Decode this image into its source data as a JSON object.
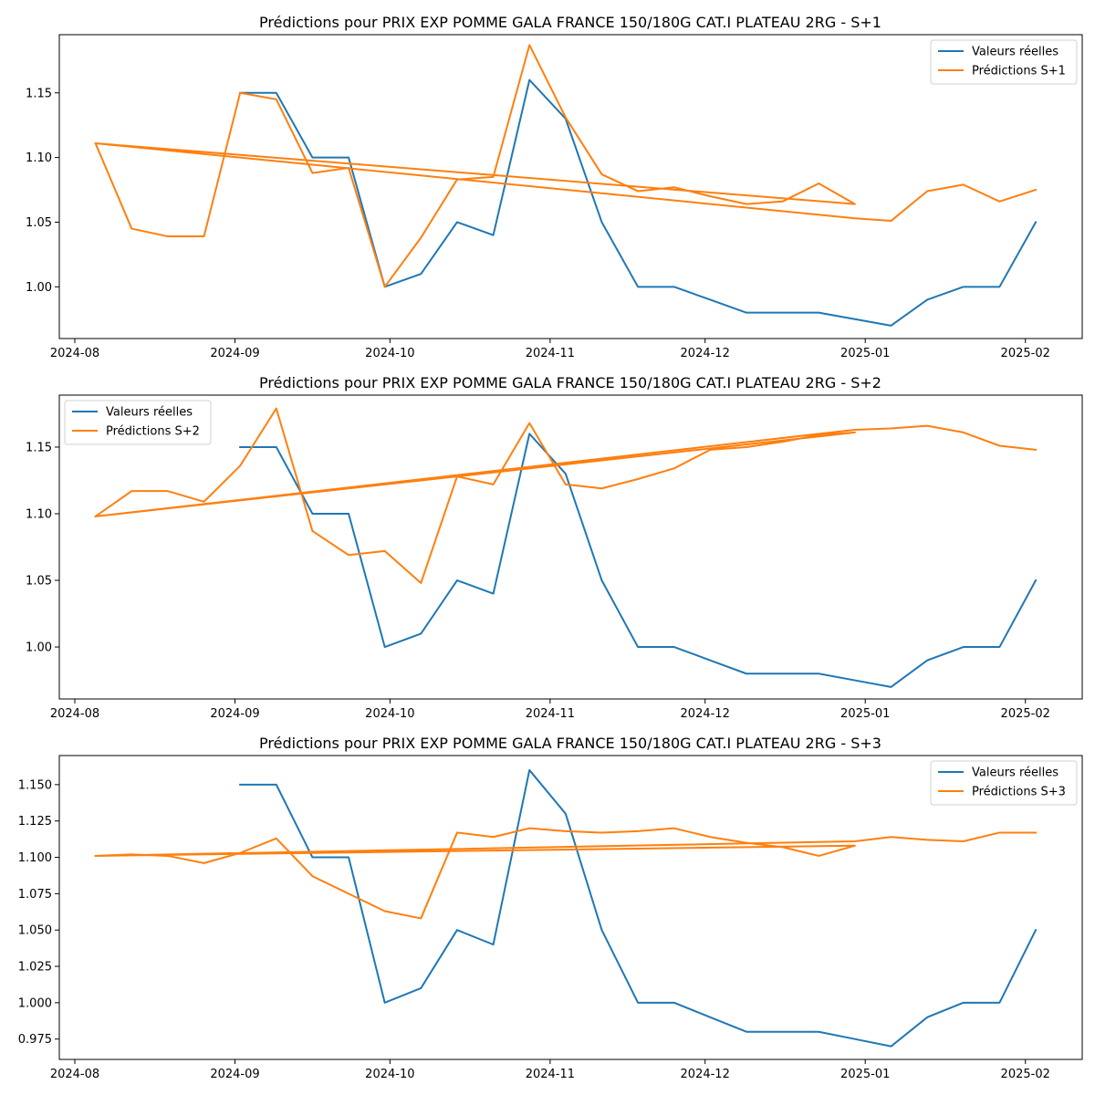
{
  "colors": {
    "actual": "#1f77b4",
    "prediction": "#ff7f0e"
  },
  "chart_data": [
    {
      "type": "line",
      "title": "Prédictions pour PRIX EXP POMME GALA FRANCE 150/180G CAT.I PLATEAU 2RG - S+1",
      "xlabel": "",
      "ylabel": "",
      "xlim": [
        "2024-07-29",
        "2025-02-12"
      ],
      "ylim": [
        0.96,
        1.195
      ],
      "xticks": [
        "2024-08-01",
        "2024-09-01",
        "2024-10-01",
        "2024-11-01",
        "2024-12-01",
        "2025-01-01",
        "2025-02-01"
      ],
      "xtick_labels": [
        "2024-08",
        "2024-09",
        "2024-10",
        "2024-11",
        "2024-12",
        "2025-01",
        "2025-02"
      ],
      "yticks": [
        1.0,
        1.05,
        1.1,
        1.15
      ],
      "ytick_labels": [
        "1.00",
        "1.05",
        "1.10",
        "1.15"
      ],
      "legend_position": "upper right",
      "grid": false,
      "series": [
        {
          "name": "Valeurs réelles",
          "color_key": "actual",
          "x": [
            "2024-09-02",
            "2024-09-09",
            "2024-09-16",
            "2024-09-23",
            "2024-09-30",
            "2024-10-07",
            "2024-10-14",
            "2024-10-21",
            "2024-10-28",
            "2024-11-04",
            "2024-11-11",
            "2024-11-18",
            "2024-11-25",
            "2024-12-02",
            "2024-12-09",
            "2024-12-16",
            "2024-12-23",
            "2024-12-30",
            "2025-01-06",
            "2025-01-13",
            "2025-01-20",
            "2025-01-27",
            "2025-02-03"
          ],
          "y": [
            1.15,
            1.15,
            1.1,
            1.1,
            1.0,
            1.01,
            1.05,
            1.04,
            1.16,
            1.13,
            1.05,
            1.0,
            1.0,
            0.99,
            0.98,
            0.98,
            0.98,
            0.975,
            0.97,
            0.99,
            1.0,
            1.0,
            1.05
          ]
        },
        {
          "name": "Prédictions S+1",
          "color_key": "prediction",
          "x": [
            "2024-08-05",
            "2024-08-12",
            "2024-08-19",
            "2024-08-26",
            "2024-09-02",
            "2024-09-09",
            "2024-09-16",
            "2024-09-23",
            "2024-09-30",
            "2024-10-07",
            "2024-10-14",
            "2024-10-21",
            "2024-10-28",
            "2024-11-04",
            "2024-11-11",
            "2024-11-18",
            "2024-11-25",
            "2024-12-02",
            "2024-12-09",
            "2024-12-16",
            "2024-12-23",
            "2024-12-30",
            "2024-08-05",
            "2024-12-30",
            "2025-01-06",
            "2025-01-13",
            "2025-01-20",
            "2025-01-27",
            "2025-02-03"
          ],
          "y": [
            1.111,
            1.045,
            1.039,
            1.039,
            1.15,
            1.145,
            1.088,
            1.092,
            1.0,
            1.038,
            1.083,
            1.085,
            1.187,
            1.131,
            1.087,
            1.074,
            1.077,
            1.07,
            1.064,
            1.066,
            1.08,
            1.064,
            1.111,
            1.053,
            1.051,
            1.074,
            1.079,
            1.066,
            1.075
          ]
        }
      ]
    },
    {
      "type": "line",
      "title": "Prédictions pour PRIX EXP POMME GALA FRANCE 150/180G CAT.I PLATEAU 2RG - S+2",
      "xlabel": "",
      "ylabel": "",
      "xlim": [
        "2024-07-29",
        "2025-02-12"
      ],
      "ylim": [
        0.961,
        1.189
      ],
      "xticks": [
        "2024-08-01",
        "2024-09-01",
        "2024-10-01",
        "2024-11-01",
        "2024-12-01",
        "2025-01-01",
        "2025-02-01"
      ],
      "xtick_labels": [
        "2024-08",
        "2024-09",
        "2024-10",
        "2024-11",
        "2024-12",
        "2025-01",
        "2025-02"
      ],
      "yticks": [
        1.0,
        1.05,
        1.1,
        1.15
      ],
      "ytick_labels": [
        "1.00",
        "1.05",
        "1.10",
        "1.15"
      ],
      "legend_position": "upper left",
      "grid": false,
      "series": [
        {
          "name": "Valeurs réelles",
          "color_key": "actual",
          "x": [
            "2024-09-02",
            "2024-09-09",
            "2024-09-16",
            "2024-09-23",
            "2024-09-30",
            "2024-10-07",
            "2024-10-14",
            "2024-10-21",
            "2024-10-28",
            "2024-11-04",
            "2024-11-11",
            "2024-11-18",
            "2024-11-25",
            "2024-12-02",
            "2024-12-09",
            "2024-12-16",
            "2024-12-23",
            "2024-12-30",
            "2025-01-06",
            "2025-01-13",
            "2025-01-20",
            "2025-01-27",
            "2025-02-03"
          ],
          "y": [
            1.15,
            1.15,
            1.1,
            1.1,
            1.0,
            1.01,
            1.05,
            1.04,
            1.16,
            1.13,
            1.05,
            1.0,
            1.0,
            0.99,
            0.98,
            0.98,
            0.98,
            0.975,
            0.97,
            0.99,
            1.0,
            1.0,
            1.05
          ]
        },
        {
          "name": "Prédictions S+2",
          "color_key": "prediction",
          "x": [
            "2024-08-05",
            "2024-08-12",
            "2024-08-19",
            "2024-08-26",
            "2024-09-02",
            "2024-09-09",
            "2024-09-16",
            "2024-09-23",
            "2024-09-30",
            "2024-10-07",
            "2024-10-14",
            "2024-10-21",
            "2024-10-28",
            "2024-11-04",
            "2024-11-11",
            "2024-11-18",
            "2024-11-25",
            "2024-12-02",
            "2024-12-09",
            "2024-12-16",
            "2024-12-23",
            "2024-12-30",
            "2024-08-05",
            "2024-12-30",
            "2025-01-06",
            "2025-01-13",
            "2025-01-20",
            "2025-01-27",
            "2025-02-03"
          ],
          "y": [
            1.098,
            1.117,
            1.117,
            1.109,
            1.136,
            1.179,
            1.087,
            1.069,
            1.072,
            1.048,
            1.128,
            1.122,
            1.168,
            1.122,
            1.119,
            1.126,
            1.134,
            1.148,
            1.15,
            1.154,
            1.159,
            1.161,
            1.098,
            1.163,
            1.164,
            1.166,
            1.161,
            1.151,
            1.148
          ]
        }
      ]
    },
    {
      "type": "line",
      "title": "Prédictions pour PRIX EXP POMME GALA FRANCE 150/180G CAT.I PLATEAU 2RG - S+3",
      "xlabel": "",
      "ylabel": "",
      "xlim": [
        "2024-07-29",
        "2025-02-12"
      ],
      "ylim": [
        0.961,
        1.17
      ],
      "xticks": [
        "2024-08-01",
        "2024-09-01",
        "2024-10-01",
        "2024-11-01",
        "2024-12-01",
        "2025-01-01",
        "2025-02-01"
      ],
      "xtick_labels": [
        "2024-08",
        "2024-09",
        "2024-10",
        "2024-11",
        "2024-12",
        "2025-01",
        "2025-02"
      ],
      "yticks": [
        0.975,
        1.0,
        1.025,
        1.05,
        1.075,
        1.1,
        1.125,
        1.15
      ],
      "ytick_labels": [
        "0.975",
        "1.000",
        "1.025",
        "1.050",
        "1.075",
        "1.100",
        "1.125",
        "1.150"
      ],
      "legend_position": "upper right",
      "grid": false,
      "series": [
        {
          "name": "Valeurs réelles",
          "color_key": "actual",
          "x": [
            "2024-09-02",
            "2024-09-09",
            "2024-09-16",
            "2024-09-23",
            "2024-09-30",
            "2024-10-07",
            "2024-10-14",
            "2024-10-21",
            "2024-10-28",
            "2024-11-04",
            "2024-11-11",
            "2024-11-18",
            "2024-11-25",
            "2024-12-02",
            "2024-12-09",
            "2024-12-16",
            "2024-12-23",
            "2024-12-30",
            "2025-01-06",
            "2025-01-13",
            "2025-01-20",
            "2025-01-27",
            "2025-02-03"
          ],
          "y": [
            1.15,
            1.15,
            1.1,
            1.1,
            1.0,
            1.01,
            1.05,
            1.04,
            1.16,
            1.13,
            1.05,
            1.0,
            1.0,
            0.99,
            0.98,
            0.98,
            0.98,
            0.975,
            0.97,
            0.99,
            1.0,
            1.0,
            1.05
          ]
        },
        {
          "name": "Prédictions S+3",
          "color_key": "prediction",
          "x": [
            "2024-08-05",
            "2024-08-12",
            "2024-08-19",
            "2024-08-26",
            "2024-09-02",
            "2024-09-09",
            "2024-09-16",
            "2024-09-23",
            "2024-09-30",
            "2024-10-07",
            "2024-10-14",
            "2024-10-21",
            "2024-10-28",
            "2024-11-04",
            "2024-11-11",
            "2024-11-18",
            "2024-11-25",
            "2024-12-02",
            "2024-12-09",
            "2024-12-16",
            "2024-12-23",
            "2024-12-30",
            "2024-08-05",
            "2024-12-30",
            "2025-01-06",
            "2025-01-13",
            "2025-01-20",
            "2025-01-27",
            "2025-02-03"
          ],
          "y": [
            1.101,
            1.102,
            1.101,
            1.096,
            1.103,
            1.113,
            1.087,
            1.075,
            1.063,
            1.058,
            1.117,
            1.114,
            1.12,
            1.118,
            1.117,
            1.118,
            1.12,
            1.114,
            1.11,
            1.107,
            1.101,
            1.108,
            1.101,
            1.111,
            1.114,
            1.112,
            1.111,
            1.117,
            1.117
          ]
        }
      ]
    }
  ]
}
